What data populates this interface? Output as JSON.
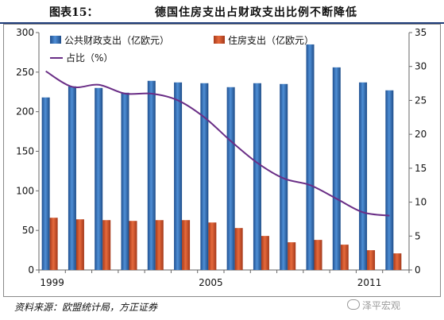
{
  "header": {
    "figure_number": "图表15：",
    "title": "德国住房支出占财政支出比例不断降低"
  },
  "source": "资料来源：欧盟统计局，方正证券",
  "watermark": "泽平宏观",
  "chart_data": {
    "type": "bar",
    "categories": [
      1999,
      2000,
      2001,
      2002,
      2003,
      2004,
      2005,
      2006,
      2007,
      2008,
      2009,
      2010,
      2011,
      2012
    ],
    "x_tick_labels": [
      {
        "category": 1999,
        "label": "1999"
      },
      {
        "category": 2005,
        "label": "2005"
      },
      {
        "category": 2011,
        "label": "2011"
      }
    ],
    "series": [
      {
        "name": "公共财政支出（亿欧元）",
        "type": "bar",
        "axis": "left",
        "color": "#2e6fb8",
        "values": [
          218,
          232,
          230,
          224,
          239,
          237,
          236,
          231,
          236,
          235,
          285,
          256,
          237,
          227
        ]
      },
      {
        "name": "住房支出（亿欧元）",
        "type": "bar",
        "axis": "left",
        "color": "#d2542c",
        "values": [
          66,
          64,
          63,
          62,
          63,
          63,
          60,
          53,
          43,
          35,
          38,
          32,
          25,
          21
        ]
      },
      {
        "name": "占比（%）",
        "type": "line",
        "axis": "right",
        "color": "#6a2e86",
        "values": [
          29.3,
          27.0,
          27.3,
          26.0,
          26.0,
          25.0,
          22.5,
          19.0,
          15.8,
          13.5,
          12.5,
          10.5,
          8.5,
          8.0
        ]
      }
    ],
    "y_left": {
      "min": 0,
      "max": 300,
      "ticks": [
        0,
        50,
        100,
        150,
        200,
        250,
        300
      ]
    },
    "y_right": {
      "min": 0,
      "max": 35,
      "ticks": [
        0,
        5,
        10,
        15,
        20,
        25,
        30,
        35
      ]
    },
    "legend_position": "top-left",
    "grid": false
  }
}
